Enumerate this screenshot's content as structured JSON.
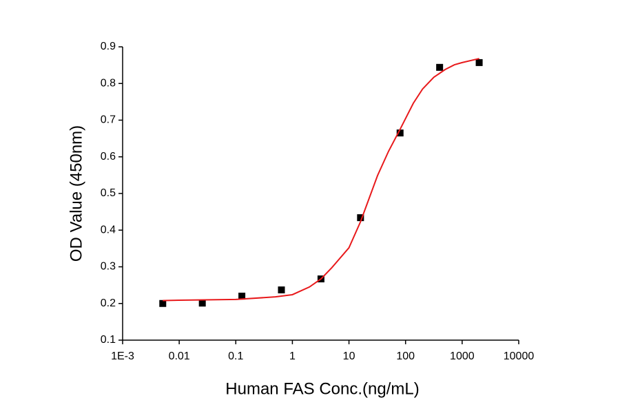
{
  "chart_data": {
    "type": "scatter",
    "x_label": "Human FAS Conc.(ng/mL)",
    "y_label": "OD Value (450nm)",
    "xscale": "log",
    "xlim": [
      0.001,
      10000
    ],
    "xticks": [
      {
        "value": 0.001,
        "label": "1E-3"
      },
      0.01,
      0.1,
      1,
      10,
      100,
      1000,
      10000
    ],
    "ylim": [
      0.1,
      0.9
    ],
    "yticks": [
      0.1,
      0.2,
      0.3,
      0.4,
      0.5,
      0.6,
      0.7,
      0.8,
      0.9
    ],
    "series": [
      {
        "type": "scatter",
        "color": "#000000",
        "x": [
          0.00512,
          0.0256,
          0.128,
          0.64,
          3.2,
          16,
          80,
          400,
          2000
        ],
        "values": [
          0.2,
          0.201,
          0.22,
          0.237,
          0.267,
          0.434,
          0.665,
          0.844,
          0.857
        ]
      },
      {
        "type": "line",
        "color": "#e8191b",
        "x": [
          0.00512,
          0.01,
          0.1,
          0.5,
          1,
          2,
          3.2,
          5,
          10,
          16,
          32,
          50,
          80,
          137,
          200,
          316,
          500,
          730,
          1000,
          2000
        ],
        "values": [
          0.208,
          0.209,
          0.211,
          0.218,
          0.224,
          0.245,
          0.267,
          0.298,
          0.352,
          0.423,
          0.549,
          0.615,
          0.675,
          0.746,
          0.785,
          0.817,
          0.838,
          0.851,
          0.857,
          0.868
        ]
      }
    ]
  }
}
